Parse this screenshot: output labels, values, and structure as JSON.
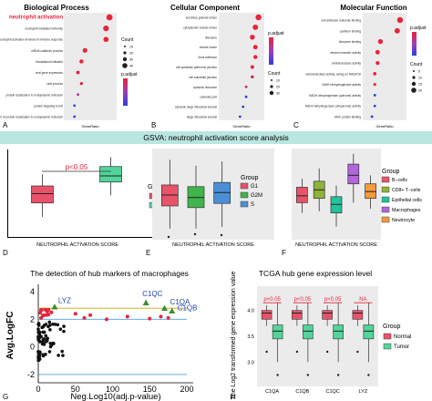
{
  "colors": {
    "red": "#e8243a",
    "blue": "#2d3fd8",
    "teal_band": "#b9e6e0",
    "normal": "#e8536a",
    "tumor": "#52d49a",
    "g1": "#e8536a",
    "g2m": "#3fb54b",
    "s": "#4a8fd8",
    "bcells": "#e8536a",
    "cd8": "#8fb23a",
    "epithelial": "#21c39a",
    "macrophages": "#b166d9",
    "neutrocyte": "#f49a3f",
    "green_tri": "#3a8f2a",
    "hline_yellow": "#c8a800",
    "hline_blue": "#4f9fe3",
    "orange_line": "#f2a23a"
  },
  "panelA": {
    "title": "Biological Process",
    "highlight": "neutrophil activation",
    "terms": [
      "neutrophil activation",
      "neutrophil mediated immunity",
      "neutrophil activation involved in immune response",
      "mRNA catabolic process",
      "translational initiation",
      "viral gene expression",
      "viral process",
      "protein localization to endoplasmic reticulum",
      "protein targeting to ER",
      "establishment of protein localization to endoplasmic reticulum"
    ],
    "count_label": "Count",
    "padj_label": "p.adjust",
    "xlabel": "GeneRatio",
    "letter": "A"
  },
  "panelB": {
    "title": "Cellular Component",
    "terms": [
      "secretory granule lumen",
      "cytoplasmic vesicle lumen",
      "ribosome",
      "vesicle lumen",
      "focal adhesion",
      "cell-substrate adherens junction",
      "cell-substrate junction",
      "cytosolic ribosome",
      "cytosolic part",
      "cytosolic large ribosomal subunit",
      "large ribosomal subunit"
    ],
    "count_label": "Count",
    "padj_label": "p.adjust",
    "xlabel": "GeneRatio",
    "letter": "B"
  },
  "panelC": {
    "title": "Molecular Function",
    "terms": [
      "cell adhesion molecule binding",
      "cadherin binding",
      "ribosome binding",
      "electron transfer activity",
      "oxidoreductase activity",
      "oxidoreductase activity, acting on NAD(P)H",
      "NADH dehydrogenase activity",
      "NADH dehydrogenase (quinone) activity",
      "NADH dehydrogenase (ubiquinone) activity",
      "MHC protein binding"
    ],
    "count_label": "Count",
    "padj_label": "p.adjust",
    "xlabel": "GeneRatio",
    "letter": "C"
  },
  "gsva_banner": "GSVA: neutrophil activation score analysis",
  "panelD": {
    "pvalue": "p<0.05",
    "xlabel": "NEUTROPHIL ACTIVATION SCORE",
    "legend_title": "Group",
    "groups": [
      "Normal",
      "Tumor"
    ],
    "letter": "D"
  },
  "panelE": {
    "xlabel": "NEUTROPHIL ACTIVATION SCORE",
    "legend_title": "Group",
    "groups": [
      "G1",
      "G2M",
      "S"
    ],
    "letter": "E"
  },
  "panelF": {
    "xlabel": "NEUTROPHIL ACTIVATION SCORE",
    "legend_title": "Group",
    "groups": [
      "B−cells",
      "CD8+ T−cells",
      "Epithelial cells",
      "Macrophages",
      "Neutrocyte"
    ],
    "letter": "F"
  },
  "panelG": {
    "title": "The detection of hub markers of macrophages",
    "ylabel": "Avg.LogFC",
    "xlabel": "Neg.Log10(adj.p-value)",
    "xticks": [
      "0",
      "50",
      "100",
      "150",
      "200"
    ],
    "yticks": [
      "-2",
      "0",
      "2",
      "4"
    ],
    "genes": [
      "LYZ",
      "C1QC",
      "C1QA",
      "C1QB"
    ],
    "letter": "G"
  },
  "panelH": {
    "title": "TCGA hub gene expression level",
    "ylabel": "The Log2 transformed gene expression value",
    "yticks": [
      "3.0",
      "3.5",
      "4.0"
    ],
    "categories": [
      "C1QA",
      "C1QB",
      "C1QC",
      "LYZ"
    ],
    "sig_labels": [
      "p<0.05",
      "p<0.05",
      "p<0.05",
      "NA"
    ],
    "legend_title": "Group",
    "groups": [
      "Normal",
      "Tumor"
    ],
    "letter": "H"
  },
  "chart_data": [
    {
      "type": "scatter",
      "title": "Biological Process",
      "xlabel": "GeneRatio",
      "categories": [
        "neutrophil activation",
        "neutrophil mediated immunity",
        "neutrophil activation involved in immune response",
        "mRNA catabolic process",
        "translational initiation",
        "viral gene expression",
        "viral process",
        "protein localization to endoplasmic reticulum",
        "protein targeting to ER",
        "establishment of protein localization to endoplasmic reticulum"
      ],
      "x": [
        0.2,
        0.19,
        0.19,
        0.13,
        0.12,
        0.11,
        0.12,
        0.11,
        0.1,
        0.1
      ],
      "colors": [
        "#e8243a",
        "#e8243a",
        "#e8243a",
        "#e8243a",
        "#e8243a",
        "#e8243a",
        "#e8243a",
        "#e8243a",
        "#e8243a",
        "#e8243a"
      ],
      "legend_values": [
        "10",
        "20",
        "30",
        "40"
      ]
    },
    {
      "type": "scatter",
      "title": "Cellular Component",
      "xlabel": "GeneRatio",
      "x": [
        0.2,
        0.19,
        0.18,
        0.19,
        0.19,
        0.18,
        0.18,
        0.16,
        0.16,
        0.15,
        0.14
      ],
      "legend_values": [
        "10",
        "20",
        "30"
      ]
    },
    {
      "type": "scatter",
      "title": "Molecular Function",
      "xlabel": "GeneRatio",
      "x": [
        0.2,
        0.19,
        0.13,
        0.12,
        0.12,
        0.11,
        0.11,
        0.11,
        0.11,
        0.1
      ],
      "legend_values": [
        "5",
        "10",
        "15",
        "20"
      ]
    },
    {
      "type": "box",
      "title": "",
      "xlabel": "NEUTROPHIL ACTIVATION SCORE",
      "series": [
        {
          "name": "Normal",
          "q1": 0.38,
          "median": 0.5,
          "q3": 0.6,
          "lo": 0.2,
          "hi": 0.75
        },
        {
          "name": "Tumor",
          "q1": 0.65,
          "median": 0.73,
          "q3": 0.85,
          "lo": 0.48,
          "hi": 0.97
        }
      ]
    },
    {
      "type": "box",
      "title": "",
      "xlabel": "NEUTROPHIL ACTIVATION SCORE",
      "series": [
        {
          "name": "G1",
          "q1": 0.37,
          "median": 0.5,
          "q3": 0.62,
          "lo": 0.1,
          "hi": 0.92
        },
        {
          "name": "G2M",
          "q1": 0.35,
          "median": 0.47,
          "q3": 0.6,
          "lo": 0.1,
          "hi": 0.85
        },
        {
          "name": "S",
          "q1": 0.4,
          "median": 0.53,
          "q3": 0.65,
          "lo": 0.12,
          "hi": 0.9
        }
      ]
    },
    {
      "type": "box",
      "title": "",
      "xlabel": "NEUTROPHIL ACTIVATION SCORE",
      "series": [
        {
          "name": "B−cells",
          "q1": 0.4,
          "median": 0.48,
          "q3": 0.58,
          "lo": 0.28,
          "hi": 0.68
        },
        {
          "name": "CD8+ T−cells",
          "q1": 0.45,
          "median": 0.55,
          "q3": 0.65,
          "lo": 0.3,
          "hi": 0.8
        },
        {
          "name": "Epithelial cells",
          "q1": 0.28,
          "median": 0.38,
          "q3": 0.47,
          "lo": 0.12,
          "hi": 0.6
        },
        {
          "name": "Macrophages",
          "q1": 0.62,
          "median": 0.72,
          "q3": 0.85,
          "lo": 0.4,
          "hi": 0.97
        },
        {
          "name": "Neutrocyte",
          "q1": 0.45,
          "median": 0.53,
          "q3": 0.62,
          "lo": 0.33,
          "hi": 0.72
        }
      ]
    },
    {
      "type": "scatter",
      "title": "The detection of hub markers of macrophages",
      "xlabel": "Neg.Log10(adj.p-value)",
      "ylabel": "Avg.LogFC",
      "xlim": [
        0,
        200
      ],
      "ylim": [
        -2.6,
        4.4
      ],
      "labeled_points": [
        {
          "name": "LYZ",
          "x": 22,
          "y": 2.9
        },
        {
          "name": "C1QC",
          "x": 145,
          "y": 3.2
        },
        {
          "name": "C1QA",
          "x": 170,
          "y": 2.8
        },
        {
          "name": "C1QB",
          "x": 180,
          "y": 2.6
        }
      ],
      "hlines": [
        2.8,
        2.0,
        -2.0
      ]
    },
    {
      "type": "box",
      "title": "TCGA hub gene expression level",
      "ylabel": "The Log2 transformed gene expression value",
      "categories": [
        "C1QA",
        "C1QB",
        "C1QC",
        "LYZ"
      ],
      "series": [
        {
          "name": "Normal",
          "medians": [
            3.95,
            3.95,
            3.95,
            3.95
          ]
        },
        {
          "name": "Tumor",
          "medians": [
            3.6,
            3.6,
            3.6,
            3.55
          ]
        }
      ]
    }
  ]
}
